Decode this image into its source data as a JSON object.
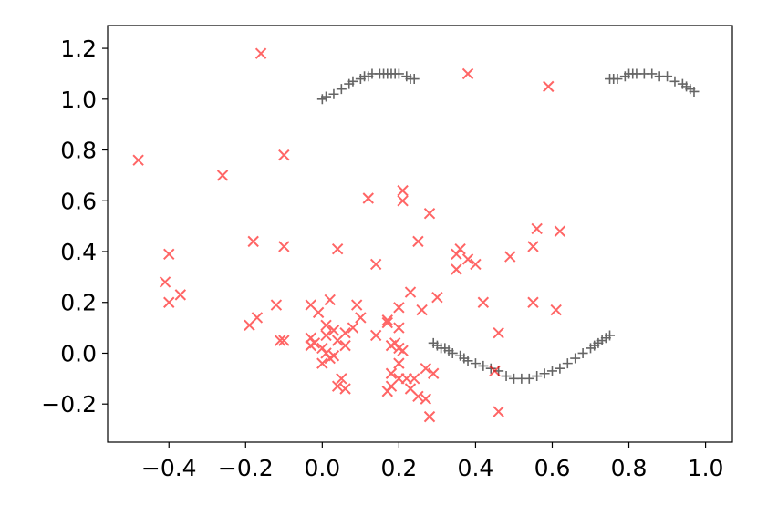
{
  "chart_data": {
    "type": "scatter",
    "title": "",
    "xlabel": "",
    "ylabel": "",
    "xlim": [
      -0.56,
      1.07
    ],
    "ylim": [
      -0.35,
      1.29
    ],
    "grid": false,
    "x_ticks": [
      {
        "value": -0.4,
        "label": "−0.4"
      },
      {
        "value": -0.2,
        "label": "−0.2"
      },
      {
        "value": 0.0,
        "label": "0.0"
      },
      {
        "value": 0.2,
        "label": "0.2"
      },
      {
        "value": 0.4,
        "label": "0.4"
      },
      {
        "value": 0.6,
        "label": "0.6"
      },
      {
        "value": 0.8,
        "label": "0.8"
      },
      {
        "value": 1.0,
        "label": "1.0"
      }
    ],
    "y_ticks": [
      {
        "value": -0.2,
        "label": "−0.2"
      },
      {
        "value": 0.0,
        "label": "0.0"
      },
      {
        "value": 0.2,
        "label": "0.2"
      },
      {
        "value": 0.4,
        "label": "0.4"
      },
      {
        "value": 0.6,
        "label": "0.6"
      },
      {
        "value": 0.8,
        "label": "0.8"
      },
      {
        "value": 1.0,
        "label": "1.0"
      },
      {
        "value": 1.2,
        "label": "1.2"
      }
    ],
    "series": [
      {
        "marker": "plus",
        "color": "#000000",
        "opacity": 0.6,
        "points": [
          [
            0.0,
            1.0
          ],
          [
            0.01,
            1.01
          ],
          [
            0.03,
            1.02
          ],
          [
            0.05,
            1.04
          ],
          [
            0.07,
            1.06
          ],
          [
            0.08,
            1.07
          ],
          [
            0.1,
            1.08
          ],
          [
            0.11,
            1.09
          ],
          [
            0.12,
            1.09
          ],
          [
            0.13,
            1.1
          ],
          [
            0.15,
            1.1
          ],
          [
            0.16,
            1.1
          ],
          [
            0.17,
            1.1
          ],
          [
            0.18,
            1.1
          ],
          [
            0.19,
            1.1
          ],
          [
            0.2,
            1.1
          ],
          [
            0.22,
            1.09
          ],
          [
            0.23,
            1.08
          ],
          [
            0.24,
            1.08
          ],
          [
            0.75,
            1.08
          ],
          [
            0.76,
            1.08
          ],
          [
            0.77,
            1.08
          ],
          [
            0.79,
            1.09
          ],
          [
            0.8,
            1.1
          ],
          [
            0.81,
            1.1
          ],
          [
            0.82,
            1.1
          ],
          [
            0.84,
            1.1
          ],
          [
            0.86,
            1.1
          ],
          [
            0.88,
            1.09
          ],
          [
            0.9,
            1.09
          ],
          [
            0.92,
            1.07
          ],
          [
            0.94,
            1.06
          ],
          [
            0.95,
            1.05
          ],
          [
            0.96,
            1.04
          ],
          [
            0.97,
            1.03
          ],
          [
            0.29,
            0.04
          ],
          [
            0.3,
            0.03
          ],
          [
            0.31,
            0.02
          ],
          [
            0.32,
            0.02
          ],
          [
            0.33,
            0.01
          ],
          [
            0.34,
            0.0
          ],
          [
            0.36,
            -0.01
          ],
          [
            0.37,
            -0.02
          ],
          [
            0.38,
            -0.03
          ],
          [
            0.4,
            -0.04
          ],
          [
            0.42,
            -0.05
          ],
          [
            0.44,
            -0.06
          ],
          [
            0.46,
            -0.07
          ],
          [
            0.48,
            -0.09
          ],
          [
            0.5,
            -0.1
          ],
          [
            0.52,
            -0.1
          ],
          [
            0.54,
            -0.1
          ],
          [
            0.56,
            -0.09
          ],
          [
            0.58,
            -0.08
          ],
          [
            0.6,
            -0.07
          ],
          [
            0.62,
            -0.06
          ],
          [
            0.64,
            -0.04
          ],
          [
            0.66,
            -0.02
          ],
          [
            0.68,
            0.0
          ],
          [
            0.7,
            0.02
          ],
          [
            0.71,
            0.03
          ],
          [
            0.72,
            0.04
          ],
          [
            0.73,
            0.05
          ],
          [
            0.74,
            0.06
          ],
          [
            0.75,
            0.07
          ]
        ]
      },
      {
        "marker": "x",
        "color": "#ff0000",
        "opacity": 0.6,
        "points": [
          [
            -0.16,
            1.18
          ],
          [
            0.38,
            1.1
          ],
          [
            0.59,
            1.05
          ],
          [
            -0.48,
            0.76
          ],
          [
            -0.1,
            0.78
          ],
          [
            -0.26,
            0.7
          ],
          [
            0.21,
            0.64
          ],
          [
            0.21,
            0.6
          ],
          [
            0.12,
            0.61
          ],
          [
            0.28,
            0.55
          ],
          [
            0.56,
            0.49
          ],
          [
            0.62,
            0.48
          ],
          [
            0.25,
            0.44
          ],
          [
            -0.18,
            0.44
          ],
          [
            -0.1,
            0.42
          ],
          [
            0.04,
            0.41
          ],
          [
            -0.4,
            0.39
          ],
          [
            0.35,
            0.39
          ],
          [
            0.36,
            0.41
          ],
          [
            0.55,
            0.42
          ],
          [
            0.49,
            0.38
          ],
          [
            0.38,
            0.37
          ],
          [
            0.4,
            0.35
          ],
          [
            0.35,
            0.33
          ],
          [
            0.14,
            0.35
          ],
          [
            -0.41,
            0.28
          ],
          [
            -0.37,
            0.23
          ],
          [
            -0.4,
            0.2
          ],
          [
            0.23,
            0.24
          ],
          [
            0.3,
            0.22
          ],
          [
            0.42,
            0.2
          ],
          [
            0.55,
            0.2
          ],
          [
            0.61,
            0.17
          ],
          [
            -0.12,
            0.19
          ],
          [
            -0.03,
            0.19
          ],
          [
            0.02,
            0.21
          ],
          [
            0.09,
            0.19
          ],
          [
            0.2,
            0.18
          ],
          [
            0.26,
            0.17
          ],
          [
            -0.01,
            0.16
          ],
          [
            -0.17,
            0.14
          ],
          [
            -0.19,
            0.11
          ],
          [
            0.1,
            0.14
          ],
          [
            0.17,
            0.13
          ],
          [
            0.17,
            0.12
          ],
          [
            0.01,
            0.11
          ],
          [
            0.03,
            0.09
          ],
          [
            0.06,
            0.08
          ],
          [
            0.08,
            0.1
          ],
          [
            0.2,
            0.1
          ],
          [
            0.46,
            0.08
          ],
          [
            -0.11,
            0.05
          ],
          [
            -0.1,
            0.05
          ],
          [
            -0.03,
            0.06
          ],
          [
            -0.02,
            0.04
          ],
          [
            0.01,
            0.07
          ],
          [
            0.04,
            0.05
          ],
          [
            0.06,
            0.03
          ],
          [
            0.14,
            0.07
          ],
          [
            0.19,
            0.04
          ],
          [
            0.2,
            0.02
          ],
          [
            0.21,
            0.01
          ],
          [
            -0.03,
            0.03
          ],
          [
            0.0,
            0.02
          ],
          [
            0.01,
            0.0
          ],
          [
            0.02,
            -0.02
          ],
          [
            0.0,
            -0.04
          ],
          [
            0.05,
            -0.1
          ],
          [
            0.04,
            -0.13
          ],
          [
            0.06,
            -0.14
          ],
          [
            0.18,
            -0.08
          ],
          [
            0.2,
            -0.04
          ],
          [
            0.24,
            -0.1
          ],
          [
            0.27,
            -0.06
          ],
          [
            0.29,
            -0.08
          ],
          [
            0.18,
            -0.13
          ],
          [
            0.2,
            -0.1
          ],
          [
            0.23,
            -0.14
          ],
          [
            0.25,
            -0.17
          ],
          [
            0.27,
            -0.18
          ],
          [
            0.17,
            -0.15
          ],
          [
            0.28,
            -0.25
          ],
          [
            0.45,
            -0.07
          ],
          [
            0.46,
            -0.23
          ],
          [
            0.22,
            -0.1
          ],
          [
            0.03,
            -0.01
          ],
          [
            0.18,
            0.03
          ]
        ]
      }
    ]
  }
}
